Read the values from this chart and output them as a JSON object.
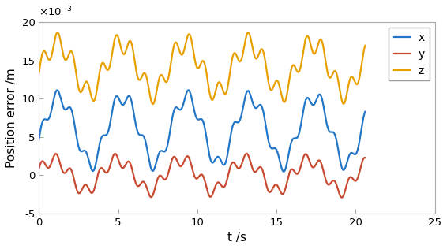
{
  "title": "",
  "xlabel": "t /s",
  "ylabel": "Position error /m",
  "xlim": [
    0,
    25
  ],
  "ylim": [
    -0.005,
    0.02
  ],
  "ytick_scale": 0.001,
  "yticks": [
    -5,
    0,
    5,
    10,
    15,
    20
  ],
  "xticks": [
    0,
    5,
    10,
    15,
    20,
    25
  ],
  "legend_labels": [
    "x",
    "y",
    "z"
  ],
  "colors": {
    "x": "#2176C7",
    "y": "#C84B31",
    "z": "#E8A000"
  },
  "linewidth": 1.6,
  "t_end": 20.6,
  "num_points": 4000,
  "background_color": "#ffffff"
}
